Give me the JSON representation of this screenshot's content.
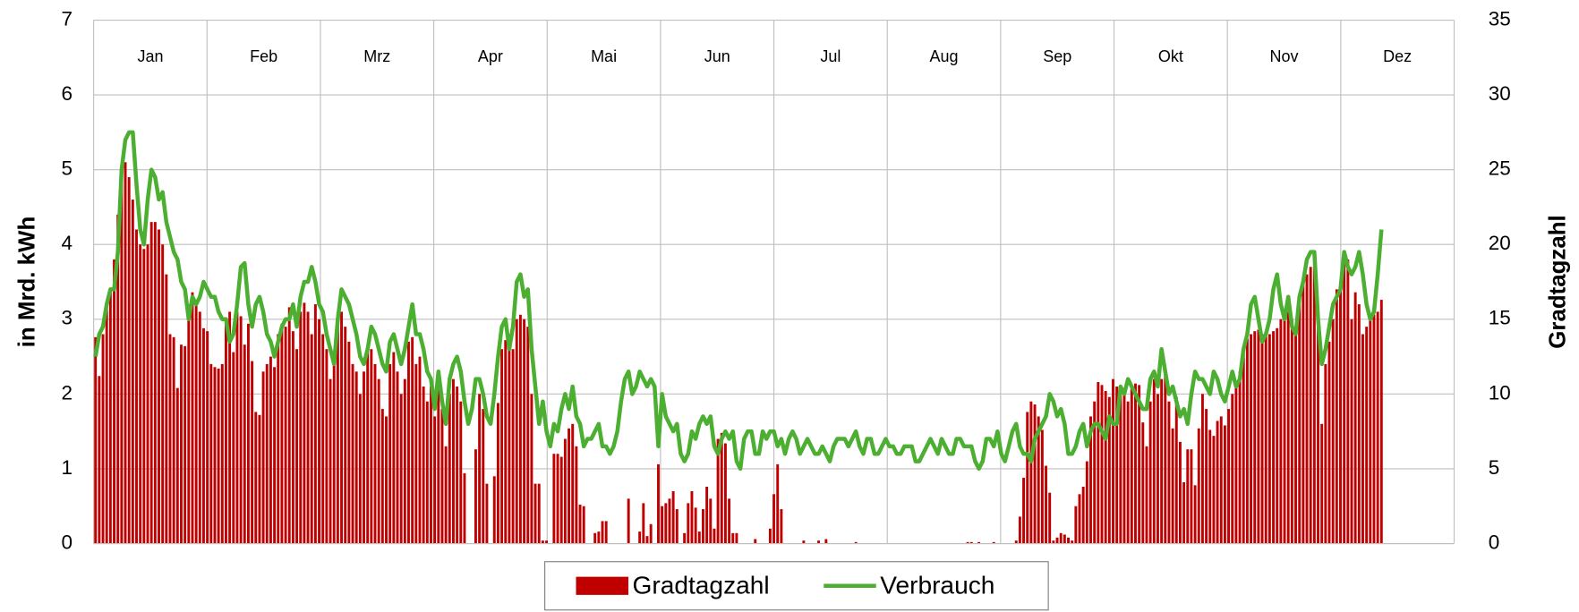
{
  "chart_data": {
    "type": "bar-line",
    "y_label": "in Mrd. kWh",
    "y2_label": "Gradtagzahl",
    "months": [
      "Jan",
      "Feb",
      "Mrz",
      "Apr",
      "Mai",
      "Jun",
      "Jul",
      "Aug",
      "Sep",
      "Okt",
      "Nov",
      "Dez"
    ],
    "ylim": [
      0,
      7
    ],
    "yticks": [
      0,
      1,
      2,
      3,
      4,
      5,
      6,
      7
    ],
    "y2lim": [
      0,
      35
    ],
    "y2ticks": [
      0,
      5,
      10,
      15,
      20,
      25,
      30,
      35
    ],
    "grid": true,
    "legend": "bottom",
    "series": [
      {
        "name": "Gradtagzahl",
        "type": "bar",
        "axis": "y2",
        "color": "#c00000",
        "values": [
          13.8,
          11.2,
          14,
          16,
          17,
          19,
          22,
          24.5,
          25.5,
          24.5,
          23,
          21,
          20,
          19.7,
          20,
          21.5,
          21.5,
          21,
          20,
          18,
          14,
          13.8,
          10.4,
          13.3,
          13.2,
          16,
          16.8,
          16,
          15.5,
          14.4,
          14.2,
          12,
          11.8,
          11.7,
          12,
          15,
          15.5,
          12.8,
          15.5,
          15.2,
          13.3,
          14.7,
          12.2,
          8.8,
          8.6,
          11.5,
          12,
          12.5,
          11.8,
          14,
          14.7,
          14.5,
          15.8,
          14.2,
          13,
          15.5,
          16.1,
          15.5,
          14,
          16,
          15,
          14,
          13,
          11,
          12,
          15.5,
          15.5,
          14.5,
          13.5,
          12,
          11.5,
          10,
          11.5,
          13,
          13,
          12,
          11,
          9,
          8.5,
          12,
          12.8,
          11.5,
          10,
          11,
          13.5,
          13.8,
          12,
          12.5,
          10.5,
          9.5,
          10.5,
          8.5,
          11,
          9,
          6.5,
          10,
          11,
          10.5,
          9.5,
          4.7,
          0,
          0,
          6.3,
          10,
          9,
          4,
          0,
          4.5,
          9.4,
          13,
          13.6,
          14,
          13,
          15,
          15.3,
          15,
          14.5,
          10,
          4,
          4,
          0.2,
          0.2,
          0,
          6,
          6,
          5.8,
          7,
          7.7,
          8,
          6.5,
          2.6,
          2.5,
          0,
          0,
          0.7,
          0.8,
          1.5,
          1.5,
          0,
          0,
          0,
          0,
          0,
          3,
          0,
          0,
          0.8,
          2.7,
          0.5,
          1.3,
          0,
          5.3,
          2.5,
          2.7,
          3,
          3.5,
          2.3,
          0,
          0.7,
          2.7,
          3.5,
          2.4,
          0.8,
          2.3,
          3.8,
          3,
          1,
          7,
          7.4,
          6.7,
          3,
          0.7,
          0.7,
          0,
          0,
          0,
          0,
          0.3,
          0,
          0,
          0,
          1,
          3.3,
          5.3,
          2.3,
          0,
          0,
          0,
          0,
          0,
          0.2,
          0,
          0,
          0,
          0.2,
          0,
          0.3,
          0,
          0,
          0,
          0,
          0,
          0,
          0,
          0.1,
          0,
          0,
          0,
          0,
          0,
          0,
          0,
          0,
          0,
          0,
          0,
          0,
          0,
          0,
          0,
          0,
          0,
          0,
          0,
          0,
          0,
          0,
          0,
          0,
          0,
          0,
          0,
          0,
          0,
          0.1,
          0.1,
          0,
          0.1,
          0,
          0,
          0,
          0.1,
          0,
          0,
          0,
          0,
          0,
          0.2,
          1.8,
          4.4,
          8.8,
          9.5,
          9.3,
          8.5,
          7.6,
          5.2,
          3.4,
          0.2,
          0.4,
          0.7,
          0.6,
          0.4,
          0.2,
          2.5,
          3.3,
          3.8,
          5.5,
          8.5,
          9.5,
          10.8,
          10.6,
          10.2,
          9.8,
          11,
          10.5,
          10,
          10.3,
          9.5,
          10.5,
          10.7,
          10.6,
          8.1,
          6.5,
          9.5,
          11,
          10,
          11,
          11.3,
          9.5,
          7.7,
          9.8,
          6.8,
          4.1,
          6.3,
          6.3,
          3.9,
          7.7,
          10,
          9,
          7.6,
          7.2,
          8.2,
          8.5,
          7.9,
          9,
          10,
          10.8,
          11.5,
          13,
          13.7,
          14,
          14.2,
          14.3,
          14,
          13.9,
          14,
          14.2,
          14.4,
          15,
          15,
          15.5,
          15,
          14,
          16,
          17.5,
          18,
          18.5,
          19,
          15,
          8,
          12,
          13.5,
          15,
          17,
          17.5,
          19,
          19,
          15,
          16.8,
          16,
          14,
          14.5,
          15,
          15.3,
          15.5,
          16.3,
          null,
          null,
          null,
          null,
          null,
          null,
          null,
          null,
          null,
          null,
          null,
          null,
          null,
          null,
          null,
          null,
          null,
          null,
          null
        ]
      },
      {
        "name": "Verbrauch",
        "type": "line",
        "axis": "y",
        "color": "#4caf32",
        "values": [
          2.5,
          2.8,
          2.9,
          3.2,
          3.4,
          3.4,
          3.9,
          5.0,
          5.4,
          5.5,
          5.5,
          4.8,
          4.2,
          4.0,
          4.6,
          5.0,
          4.9,
          4.6,
          4.7,
          4.3,
          4.1,
          3.9,
          3.8,
          3.5,
          3.4,
          3.0,
          3.3,
          3.2,
          3.3,
          3.5,
          3.4,
          3.3,
          3.3,
          3.1,
          3.0,
          3.0,
          2.7,
          2.8,
          3.2,
          3.7,
          3.75,
          3.2,
          2.9,
          3.2,
          3.3,
          3.1,
          2.8,
          2.7,
          2.5,
          2.7,
          2.9,
          3.0,
          3.0,
          3.2,
          2.9,
          3.3,
          3.5,
          3.5,
          3.7,
          3.5,
          3.2,
          3.1,
          2.8,
          2.6,
          2.4,
          3.0,
          3.4,
          3.3,
          3.2,
          3.0,
          2.8,
          2.5,
          2.4,
          2.6,
          2.9,
          2.8,
          2.6,
          2.4,
          2.3,
          2.7,
          2.8,
          2.6,
          2.4,
          2.6,
          2.9,
          3.2,
          2.8,
          2.8,
          2.6,
          2.3,
          2.2,
          1.8,
          2.3,
          1.9,
          1.6,
          2.2,
          2.4,
          2.5,
          2.3,
          1.9,
          1.6,
          1.8,
          2.2,
          2.2,
          2.0,
          1.7,
          1.6,
          2.0,
          2.5,
          2.9,
          3.0,
          2.6,
          2.9,
          3.5,
          3.6,
          3.3,
          3.4,
          2.6,
          2.1,
          1.6,
          1.9,
          1.5,
          1.3,
          1.6,
          1.5,
          1.8,
          2.0,
          1.8,
          2.1,
          1.7,
          1.6,
          1.3,
          1.4,
          1.4,
          1.5,
          1.6,
          1.3,
          1.3,
          1.2,
          1.3,
          1.5,
          1.9,
          2.2,
          2.3,
          2.0,
          2.1,
          2.3,
          2.2,
          2.1,
          2.2,
          2.1,
          1.3,
          2.0,
          1.7,
          1.6,
          1.5,
          1.6,
          1.2,
          1.1,
          1.2,
          1.5,
          1.4,
          1.6,
          1.7,
          1.6,
          1.7,
          1.3,
          1.2,
          1.4,
          1.5,
          1.4,
          1.5,
          1.1,
          1.0,
          1.4,
          1.5,
          1.5,
          1.2,
          1.2,
          1.5,
          1.4,
          1.5,
          1.5,
          1.3,
          1.4,
          1.2,
          1.4,
          1.5,
          1.4,
          1.2,
          1.3,
          1.4,
          1.3,
          1.2,
          1.2,
          1.3,
          1.2,
          1.1,
          1.3,
          1.4,
          1.4,
          1.4,
          1.3,
          1.4,
          1.5,
          1.3,
          1.2,
          1.4,
          1.4,
          1.2,
          1.2,
          1.3,
          1.4,
          1.3,
          1.3,
          1.2,
          1.2,
          1.3,
          1.3,
          1.3,
          1.1,
          1.1,
          1.2,
          1.3,
          1.4,
          1.3,
          1.2,
          1.4,
          1.3,
          1.2,
          1.2,
          1.4,
          1.4,
          1.3,
          1.3,
          1.3,
          1.1,
          1.0,
          1.1,
          1.4,
          1.4,
          1.3,
          1.5,
          1.2,
          1.1,
          1.3,
          1.5,
          1.6,
          1.3,
          1.2,
          1.2,
          1.1,
          1.4,
          1.5,
          1.6,
          1.7,
          2.0,
          1.9,
          1.7,
          1.8,
          1.6,
          1.2,
          1.2,
          1.3,
          1.5,
          1.6,
          1.3,
          1.5,
          1.6,
          1.6,
          1.5,
          1.4,
          1.7,
          1.6,
          1.6,
          2.1,
          2.0,
          2.2,
          2.1,
          2.0,
          1.9,
          1.8,
          1.8,
          2.2,
          2.3,
          2.1,
          2.6,
          2.3,
          2.0,
          2.1,
          1.9,
          1.7,
          1.8,
          1.6,
          2.0,
          2.3,
          2.2,
          2.2,
          2.1,
          2.0,
          2.3,
          2.2,
          2.0,
          1.9,
          2.1,
          2.3,
          2.1,
          2.2,
          2.6,
          2.8,
          3.2,
          3.3,
          3.0,
          2.7,
          2.8,
          3.0,
          3.4,
          3.6,
          3.2,
          3.0,
          3.3,
          2.9,
          2.8,
          3.3,
          3.5,
          3.8,
          3.9,
          3.9,
          3.0,
          2.4,
          2.6,
          2.9,
          3.2,
          3.3,
          3.4,
          3.9,
          3.7,
          3.6,
          3.7,
          3.9,
          3.6,
          3.2,
          3.0,
          3.1,
          3.6,
          4.2,
          null,
          null,
          null,
          null,
          null,
          null,
          null,
          null,
          null,
          null,
          null,
          null,
          null,
          null,
          null,
          null,
          null,
          null,
          null
        ]
      }
    ]
  }
}
